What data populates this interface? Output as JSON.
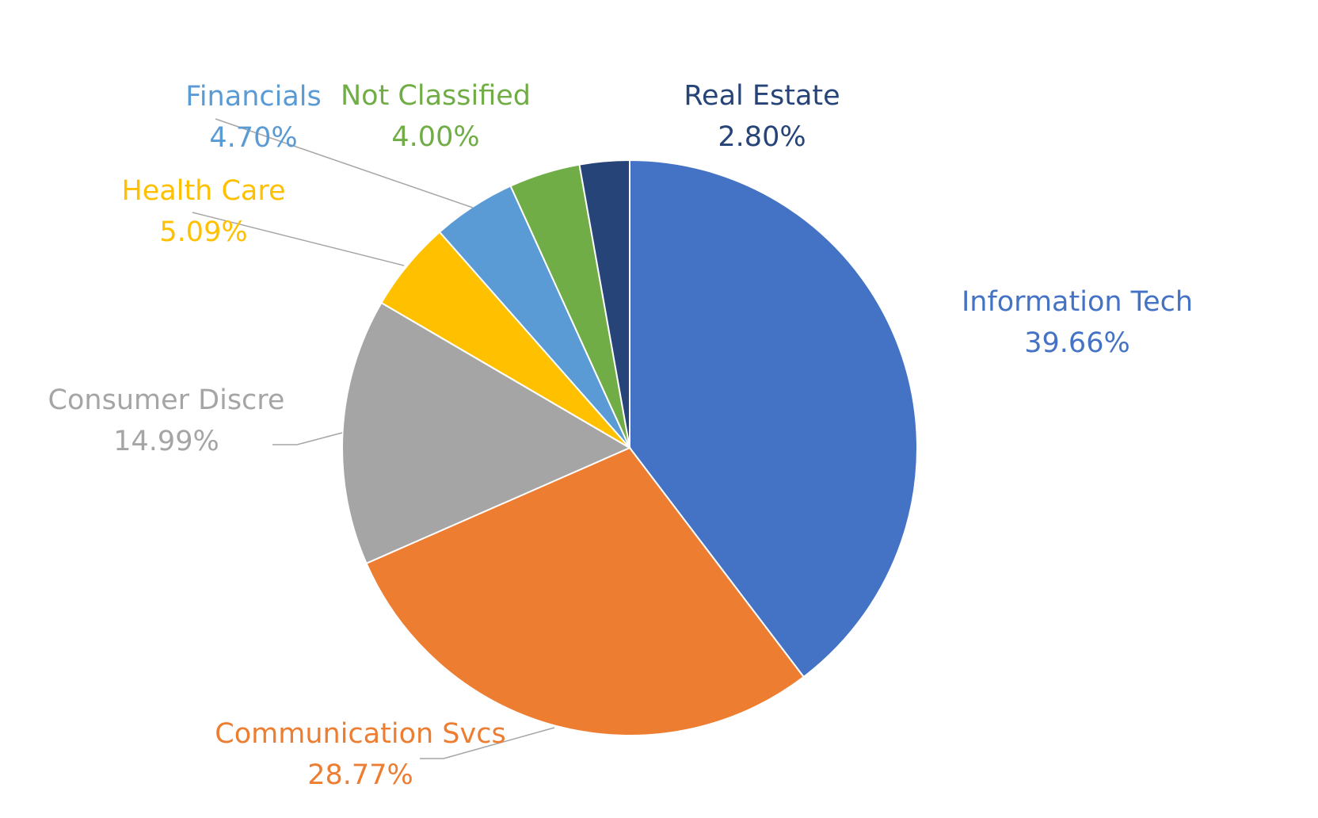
{
  "chart_data": {
    "type": "pie",
    "title": "",
    "slices": [
      {
        "label": "Information Tech",
        "value": 39.66,
        "value_label": "39.66%",
        "color": "#4472C4"
      },
      {
        "label": "Communication Svcs",
        "value": 28.77,
        "value_label": "28.77%",
        "color": "#ED7D31"
      },
      {
        "label": "Consumer Discre",
        "value": 14.99,
        "value_label": "14.99%",
        "color": "#A5A5A5"
      },
      {
        "label": "Health Care",
        "value": 5.09,
        "value_label": "5.09%",
        "color": "#FFC000"
      },
      {
        "label": "Financials",
        "value": 4.7,
        "value_label": "4.70%",
        "color": "#5B9BD5"
      },
      {
        "label": "Not Classified",
        "value": 4.0,
        "value_label": "4.00%",
        "color": "#70AD47"
      },
      {
        "label": "Real Estate",
        "value": 2.8,
        "value_label": "2.80%",
        "color": "#264478"
      }
    ],
    "start_angle": "12 o'clock",
    "direction": "clockwise",
    "legend": "none",
    "data_labels": "outside with leader lines"
  }
}
